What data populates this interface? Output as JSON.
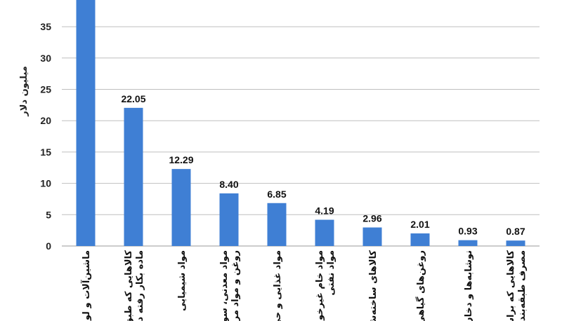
{
  "chart_data": {
    "type": "bar",
    "ylabel": "میلیون دلار",
    "ylim": [
      0,
      40
    ],
    "yticks": [
      0,
      5,
      10,
      15,
      20,
      25,
      30,
      35
    ],
    "grid": true,
    "bar_color": "#3f7fd4",
    "categories": [
      [
        "ماشین‌آلات و لو"
      ],
      [
        "کالاهایی که طبق",
        "ماده بکار رفته د"
      ],
      [
        "مواد شیمیایی"
      ],
      [
        "مواد معدنی، سو",
        "روغن و مواد مر"
      ],
      [
        "مواد غذایی و حی"
      ],
      [
        "مواد خام غیرخور",
        "مواد نفتی"
      ],
      [
        "کالاهای ساخته‌ش"
      ],
      [
        "روغن‌های گیاهی"
      ],
      [
        "نوشابه‌ها و دخان"
      ],
      [
        "کالاهایی که براس",
        "مصرف طبقه‌بندی"
      ]
    ],
    "values": [
      40.0,
      22.05,
      12.29,
      8.4,
      6.85,
      4.19,
      2.96,
      2.01,
      0.93,
      0.87
    ],
    "data_labels": [
      "",
      "22.05",
      "12.29",
      "8.40",
      "6.85",
      "4.19",
      "2.96",
      "2.01",
      "0.93",
      "0.87"
    ]
  }
}
